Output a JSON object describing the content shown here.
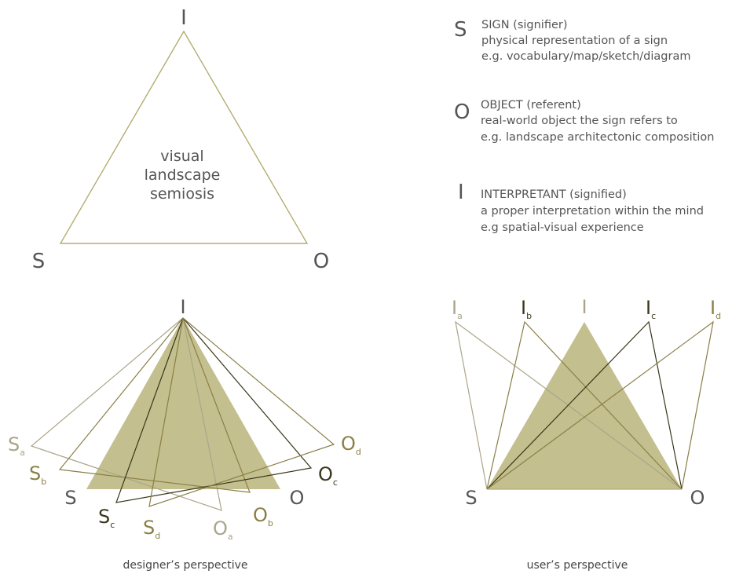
{
  "colors": {
    "olive_fill": "#c4bf8e",
    "olive_line": "#b3ad72",
    "light": "#aaa58a",
    "mid": "#8a7f46",
    "dark": "#39361a",
    "text": "#555555"
  },
  "top_triangle": {
    "vertex_i": "I",
    "vertex_s": "S",
    "vertex_o": "O",
    "center_lines": [
      "visual",
      "landscape",
      "semiosis"
    ]
  },
  "legend": [
    {
      "letter": "S",
      "title": "SIGN (signifier)",
      "line1": "physical representation of a sign",
      "line2": "e.g. vocabulary/map/sketch/diagram"
    },
    {
      "letter": "O",
      "title": "OBJECT (referent)",
      "line1": "real-world object the sign refers to",
      "line2": "e.g. landscape architectonic composition"
    },
    {
      "letter": "I",
      "title": "INTERPRETANT (signified)",
      "line1": "a proper interpretation within the mind",
      "line2": "e.g spatial-visual experience"
    }
  ],
  "designer": {
    "caption": "designer’s perspective",
    "vertex_i": "I",
    "s": "S",
    "o": "O",
    "s_a": "S",
    "s_a_sub": "a",
    "s_b": "S",
    "s_b_sub": "b",
    "s_c": "S",
    "s_c_sub": "c",
    "s_d": "S",
    "s_d_sub": "d",
    "o_a": "O",
    "o_a_sub": "a",
    "o_b": "O",
    "o_b_sub": "b",
    "o_c": "O",
    "o_c_sub": "c",
    "o_d": "O",
    "o_d_sub": "d"
  },
  "user": {
    "caption": "user’s perspective",
    "vertex_i": "I",
    "s": "S",
    "o": "O",
    "i_a": "I",
    "i_a_sub": "a",
    "i_b": "I",
    "i_b_sub": "b",
    "i_c": "I",
    "i_c_sub": "c",
    "i_d": "I",
    "i_d_sub": "d"
  }
}
